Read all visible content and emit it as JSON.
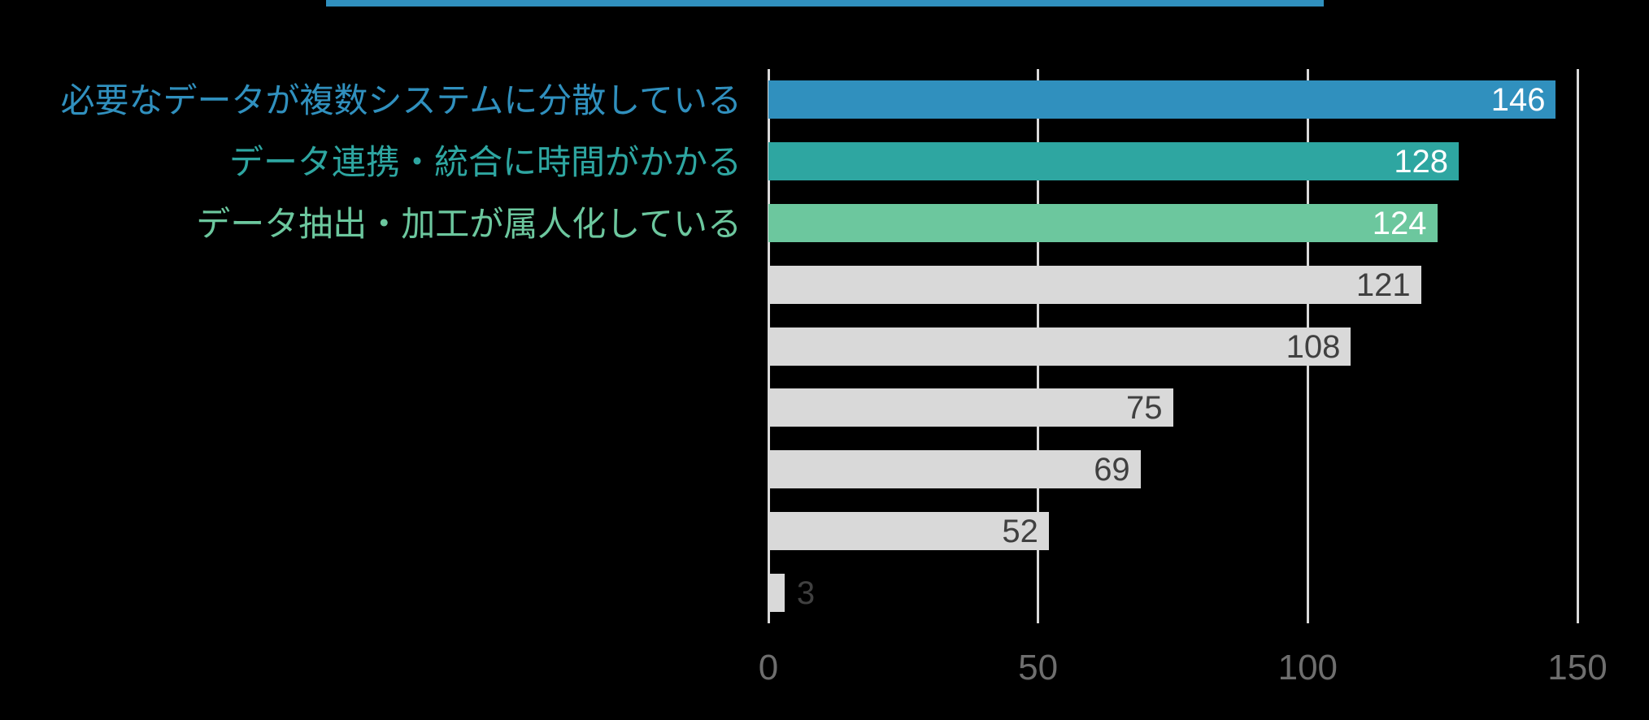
{
  "canvas": {
    "background": "#000000"
  },
  "top_strip": {
    "color": "#3090BE"
  },
  "chart_data": {
    "type": "bar",
    "orientation": "horizontal",
    "title": "",
    "categories": [
      "必要なデータが複数システムに分散している",
      "データ連携・統合に時間がかかる",
      "データ抽出・加工が属人化している",
      "",
      "",
      "",
      "",
      "",
      ""
    ],
    "values": [
      146,
      128,
      124,
      121,
      108,
      75,
      69,
      52,
      3
    ],
    "value_labels": [
      "146",
      "128",
      "124",
      "121",
      "108",
      "75",
      "69",
      "52",
      "3"
    ],
    "bar_colors": [
      "#3090BE",
      "#2EA6A1",
      "#6CC79E",
      "#D9D9D9",
      "#D9D9D9",
      "#D9D9D9",
      "#D9D9D9",
      "#D9D9D9",
      "#D9D9D9"
    ],
    "category_label_colors": [
      "#3090BE",
      "#2EA6A1",
      "#6CC79E",
      "#D9D9D9",
      "#D9D9D9",
      "#D9D9D9",
      "#D9D9D9",
      "#D9D9D9",
      "#D9D9D9"
    ],
    "value_label_colors": [
      "#FFFFFF",
      "#FFFFFF",
      "#FFFFFF",
      "#404040",
      "#404040",
      "#404040",
      "#404040",
      "#404040",
      "#404040"
    ],
    "value_label_placement": [
      "inside",
      "inside",
      "inside",
      "inside",
      "inside",
      "inside",
      "inside",
      "inside",
      "outside"
    ],
    "xlabel": "",
    "ylabel": "",
    "xlim": [
      0,
      150
    ],
    "x_ticks": [
      "0",
      "50",
      "100",
      "150"
    ],
    "x_tick_values": [
      0,
      50,
      100,
      150
    ],
    "grid": true,
    "gridline_color": "#D9D9D9",
    "tick_label_color": "#6E6E6E",
    "legend": "none"
  }
}
